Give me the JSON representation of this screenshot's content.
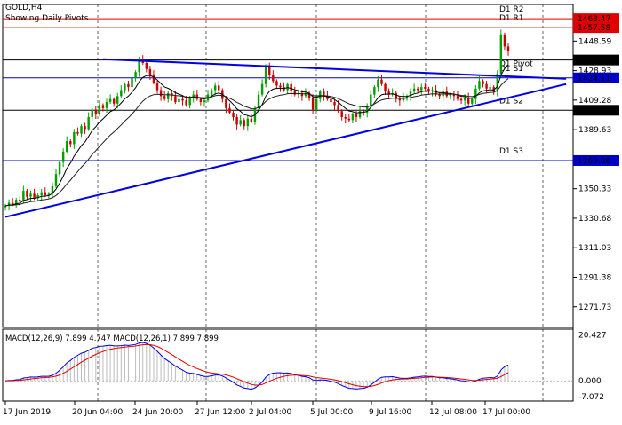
{
  "chart_data": {
    "type": "candlestick",
    "symbol_label": "GOLD,H4",
    "subtitle": "Showing Daily Pivots.",
    "price_ticks": [
      "1448.59",
      "1428.93",
      "1409.28",
      "1389.63",
      "1369.98",
      "1350.33",
      "1330.68",
      "1311.03",
      "1291.38",
      "1271.73"
    ],
    "pivot_labels": [
      {
        "name": "D1 R2",
        "value": "1463.47",
        "color": "#e00000"
      },
      {
        "name": "D1 R1",
        "value": "1457.58",
        "color": "#e00000"
      },
      {
        "name": "D1 Pivot",
        "value": "1436.00",
        "color": "#000000"
      },
      {
        "name": "D1 S1",
        "value": "1424.11",
        "color": "#0000c8"
      },
      {
        "name": "D1 S2",
        "value": "1402.53",
        "color": "#000000"
      },
      {
        "name": "D1 S3",
        "value": "1369.06",
        "color": "#0000c8"
      }
    ],
    "pivot_values": [
      1463.47,
      1457.58,
      1436.0,
      1424.11,
      1402.53,
      1369.06
    ],
    "price_range": [
      1258.0,
      1473.0
    ],
    "x_ticks": [
      "17 Jun 2019",
      "20 Jun 04:00",
      "24 Jun 20:00",
      "27 Jun 12:00",
      "2 Jul 04:00",
      "5 Jul 00:00",
      "9 Jul 16:00",
      "12 Jul 08:00",
      "17 Jul 00:00"
    ],
    "macd_label": "MACD(12,26,9) 7.899 4.747 MACD(12,26,1) 7.899 7.899",
    "macd_ticks": [
      "20.427",
      "0.000",
      "-7.072"
    ],
    "macd_range": [
      -9.0,
      23.0
    ],
    "closes": [
      1339,
      1341,
      1340,
      1343,
      1342,
      1349,
      1345,
      1347,
      1344,
      1346,
      1348,
      1346,
      1347,
      1352,
      1360,
      1368,
      1375,
      1382,
      1380,
      1388,
      1387,
      1392,
      1390,
      1398,
      1403,
      1400,
      1406,
      1404,
      1408,
      1410,
      1407,
      1412,
      1416,
      1420,
      1418,
      1424,
      1428,
      1436,
      1434,
      1430,
      1426,
      1421,
      1416,
      1412,
      1410,
      1414,
      1412,
      1408,
      1410,
      1409,
      1406,
      1411,
      1413,
      1410,
      1408,
      1409,
      1413,
      1416,
      1419,
      1416,
      1410,
      1404,
      1401,
      1398,
      1393,
      1396,
      1392,
      1397,
      1395,
      1404,
      1413,
      1420,
      1432,
      1426,
      1422,
      1419,
      1418,
      1416,
      1420,
      1415,
      1413,
      1414,
      1412,
      1414,
      1411,
      1403,
      1410,
      1415,
      1412,
      1410,
      1408,
      1406,
      1402,
      1398,
      1397,
      1396,
      1400,
      1398,
      1402,
      1401,
      1405,
      1413,
      1418,
      1423,
      1420,
      1415,
      1413,
      1414,
      1410,
      1409,
      1411,
      1412,
      1415,
      1417,
      1416,
      1418,
      1417,
      1415,
      1416,
      1413,
      1412,
      1415,
      1412,
      1413,
      1412,
      1410,
      1409,
      1411,
      1407,
      1410,
      1417,
      1422,
      1420,
      1417,
      1418,
      1415,
      1427,
      1453,
      1445,
      1442
    ],
    "trend_lines": [
      {
        "name": "descending-resistance",
        "from": [
          27,
          1436.5
        ],
        "to": [
          155,
          1423.5
        ]
      },
      {
        "name": "ascending-support",
        "from": [
          0,
          1331.5
        ],
        "to": [
          155,
          1420.0
        ]
      }
    ]
  }
}
